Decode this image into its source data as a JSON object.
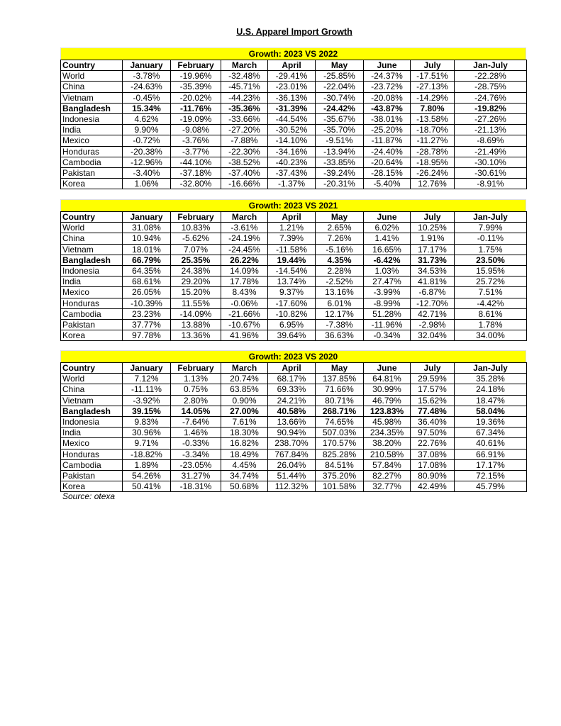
{
  "title": "U.S. Apparel Import Growth",
  "columns": [
    "Country",
    "January",
    "February",
    "March",
    "April",
    "May",
    "June",
    "July",
    "Jan-July"
  ],
  "highlight_color": "#ffff00",
  "tables": [
    {
      "heading": "Growth: 2023 VS 2022",
      "rows": [
        {
          "country": "World",
          "values": [
            "-3.78%",
            "-19.96%",
            "-32.48%",
            "-29.41%",
            "-25.85%",
            "-24.37%",
            "-17.51%",
            "-22.28%"
          ]
        },
        {
          "country": "China",
          "values": [
            "-24.63%",
            "-35.39%",
            "-45.71%",
            "-23.01%",
            "-22.04%",
            "-23.72%",
            "-27.13%",
            "-28.75%"
          ]
        },
        {
          "country": "Vietnam",
          "values": [
            "-0.45%",
            "-20.02%",
            "-44.23%",
            "-36.13%",
            "-30.74%",
            "-20.08%",
            "-14.29%",
            "-24.76%"
          ]
        },
        {
          "country": "Bangladesh",
          "bold": true,
          "values": [
            "15.34%",
            "-11.76%",
            "-35.36%",
            "-31.39%",
            "-24.42%",
            "-43.87%",
            "7.80%",
            "-19.82%"
          ]
        },
        {
          "country": "Indonesia",
          "values": [
            "4.62%",
            "-19.09%",
            "-33.66%",
            "-44.54%",
            "-35.67%",
            "-38.01%",
            "-13.58%",
            "-27.26%"
          ]
        },
        {
          "country": "India",
          "values": [
            "9.90%",
            "-9.08%",
            "-27.20%",
            "-30.52%",
            "-35.70%",
            "-25.20%",
            "-18.70%",
            "-21.13%"
          ]
        },
        {
          "country": "Mexico",
          "values": [
            "-0.72%",
            "-3.76%",
            "-7.88%",
            "-14.10%",
            "-9.51%",
            "-11.87%",
            "-11.27%",
            "-8.69%"
          ]
        },
        {
          "country": "Honduras",
          "values": [
            "-20.38%",
            "-3.77%",
            "-22.30%",
            "-34.16%",
            "-13.94%",
            "-24.40%",
            "-28.78%",
            "-21.49%"
          ]
        },
        {
          "country": "Cambodia",
          "values": [
            "-12.96%",
            "-44.10%",
            "-38.52%",
            "-40.23%",
            "-33.85%",
            "-20.64%",
            "-18.95%",
            "-30.10%"
          ]
        },
        {
          "country": "Pakistan",
          "values": [
            "-3.40%",
            "-37.18%",
            "-37.40%",
            "-37.43%",
            "-39.24%",
            "-28.15%",
            "-26.24%",
            "-30.61%"
          ]
        },
        {
          "country": "Korea",
          "values": [
            "1.06%",
            "-32.80%",
            "-16.66%",
            "-1.37%",
            "-20.31%",
            "-5.40%",
            "12.76%",
            "-8.91%"
          ]
        }
      ]
    },
    {
      "heading": "Growth: 2023 VS 2021",
      "rows": [
        {
          "country": "World",
          "values": [
            "31.08%",
            "10.83%",
            "-3.61%",
            "1.21%",
            "2.65%",
            "6.02%",
            "10.25%",
            "7.99%"
          ]
        },
        {
          "country": "China",
          "values": [
            "10.94%",
            "-5.62%",
            "-24.19%",
            "7.39%",
            "7.26%",
            "1.41%",
            "1.91%",
            "-0.11%"
          ]
        },
        {
          "country": "Vietnam",
          "values": [
            "18.01%",
            "7.07%",
            "-24.45%",
            "-11.58%",
            "-5.16%",
            "16.65%",
            "17.17%",
            "1.75%"
          ]
        },
        {
          "country": "Bangladesh",
          "bold": true,
          "values": [
            "66.79%",
            "25.35%",
            "26.22%",
            "19.44%",
            "4.35%",
            "-6.42%",
            "31.73%",
            "23.50%"
          ]
        },
        {
          "country": "Indonesia",
          "values": [
            "64.35%",
            "24.38%",
            "14.09%",
            "-14.54%",
            "2.28%",
            "1.03%",
            "34.53%",
            "15.95%"
          ]
        },
        {
          "country": "India",
          "values": [
            "68.61%",
            "29.20%",
            "17.78%",
            "13.74%",
            "-2.52%",
            "27.47%",
            "41.81%",
            "25.72%"
          ]
        },
        {
          "country": "Mexico",
          "values": [
            "26.05%",
            "15.20%",
            "8.43%",
            "9.37%",
            "13.16%",
            "-3.99%",
            "-6.87%",
            "7.51%"
          ]
        },
        {
          "country": "Honduras",
          "values": [
            "-10.39%",
            "11.55%",
            "-0.06%",
            "-17.60%",
            "6.01%",
            "-8.99%",
            "-12.70%",
            "-4.42%"
          ]
        },
        {
          "country": "Cambodia",
          "values": [
            "23.23%",
            "-14.09%",
            "-21.66%",
            "-10.82%",
            "12.17%",
            "51.28%",
            "42.71%",
            "8.61%"
          ]
        },
        {
          "country": "Pakistan",
          "values": [
            "37.77%",
            "13.88%",
            "-10.67%",
            "6.95%",
            "-7.38%",
            "-11.96%",
            "-2.98%",
            "1.78%"
          ]
        },
        {
          "country": "Korea",
          "values": [
            "97.78%",
            "13.36%",
            "41.96%",
            "39.64%",
            "36.63%",
            "-0.34%",
            "32.04%",
            "34.00%"
          ]
        }
      ]
    },
    {
      "heading": "Growth: 2023 VS 2020",
      "rows": [
        {
          "country": "World",
          "values": [
            "7.12%",
            "1.13%",
            "20.74%",
            "68.17%",
            "137.85%",
            "64.81%",
            "29.59%",
            "35.28%"
          ]
        },
        {
          "country": "China",
          "values": [
            "-11.11%",
            "0.75%",
            "63.85%",
            "69.33%",
            "71.66%",
            "30.99%",
            "17.57%",
            "24.18%"
          ]
        },
        {
          "country": "Vietnam",
          "values": [
            "-3.92%",
            "2.80%",
            "0.90%",
            "24.21%",
            "80.71%",
            "46.79%",
            "15.62%",
            "18.47%"
          ]
        },
        {
          "country": "Bangladesh",
          "bold": true,
          "values": [
            "39.15%",
            "14.05%",
            "27.00%",
            "40.58%",
            "268.71%",
            "123.83%",
            "77.48%",
            "58.04%"
          ]
        },
        {
          "country": "Indonesia",
          "values": [
            "9.83%",
            "-7.64%",
            "7.61%",
            "13.66%",
            "74.65%",
            "45.98%",
            "36.40%",
            "19.36%"
          ]
        },
        {
          "country": "India",
          "values": [
            "30.96%",
            "1.46%",
            "18.30%",
            "90.94%",
            "507.03%",
            "234.35%",
            "97.50%",
            "67.34%"
          ]
        },
        {
          "country": "Mexico",
          "values": [
            "9.71%",
            "-0.33%",
            "16.82%",
            "238.70%",
            "170.57%",
            "38.20%",
            "22.76%",
            "40.61%"
          ]
        },
        {
          "country": "Honduras",
          "values": [
            "-18.82%",
            "-3.34%",
            "18.49%",
            "767.84%",
            "825.28%",
            "210.58%",
            "37.08%",
            "66.91%"
          ]
        },
        {
          "country": "Cambodia",
          "values": [
            "1.89%",
            "-23.05%",
            "4.45%",
            "26.04%",
            "84.51%",
            "57.84%",
            "17.08%",
            "17.17%"
          ]
        },
        {
          "country": "Pakistan",
          "values": [
            "54.26%",
            "31.27%",
            "34.74%",
            "51.44%",
            "375.20%",
            "82.27%",
            "80.90%",
            "72.15%"
          ]
        },
        {
          "country": "Korea",
          "values": [
            "50.41%",
            "-18.31%",
            "50.68%",
            "112.32%",
            "101.58%",
            "32.77%",
            "42.49%",
            "45.79%"
          ]
        }
      ]
    }
  ],
  "source": "Source: otexa"
}
